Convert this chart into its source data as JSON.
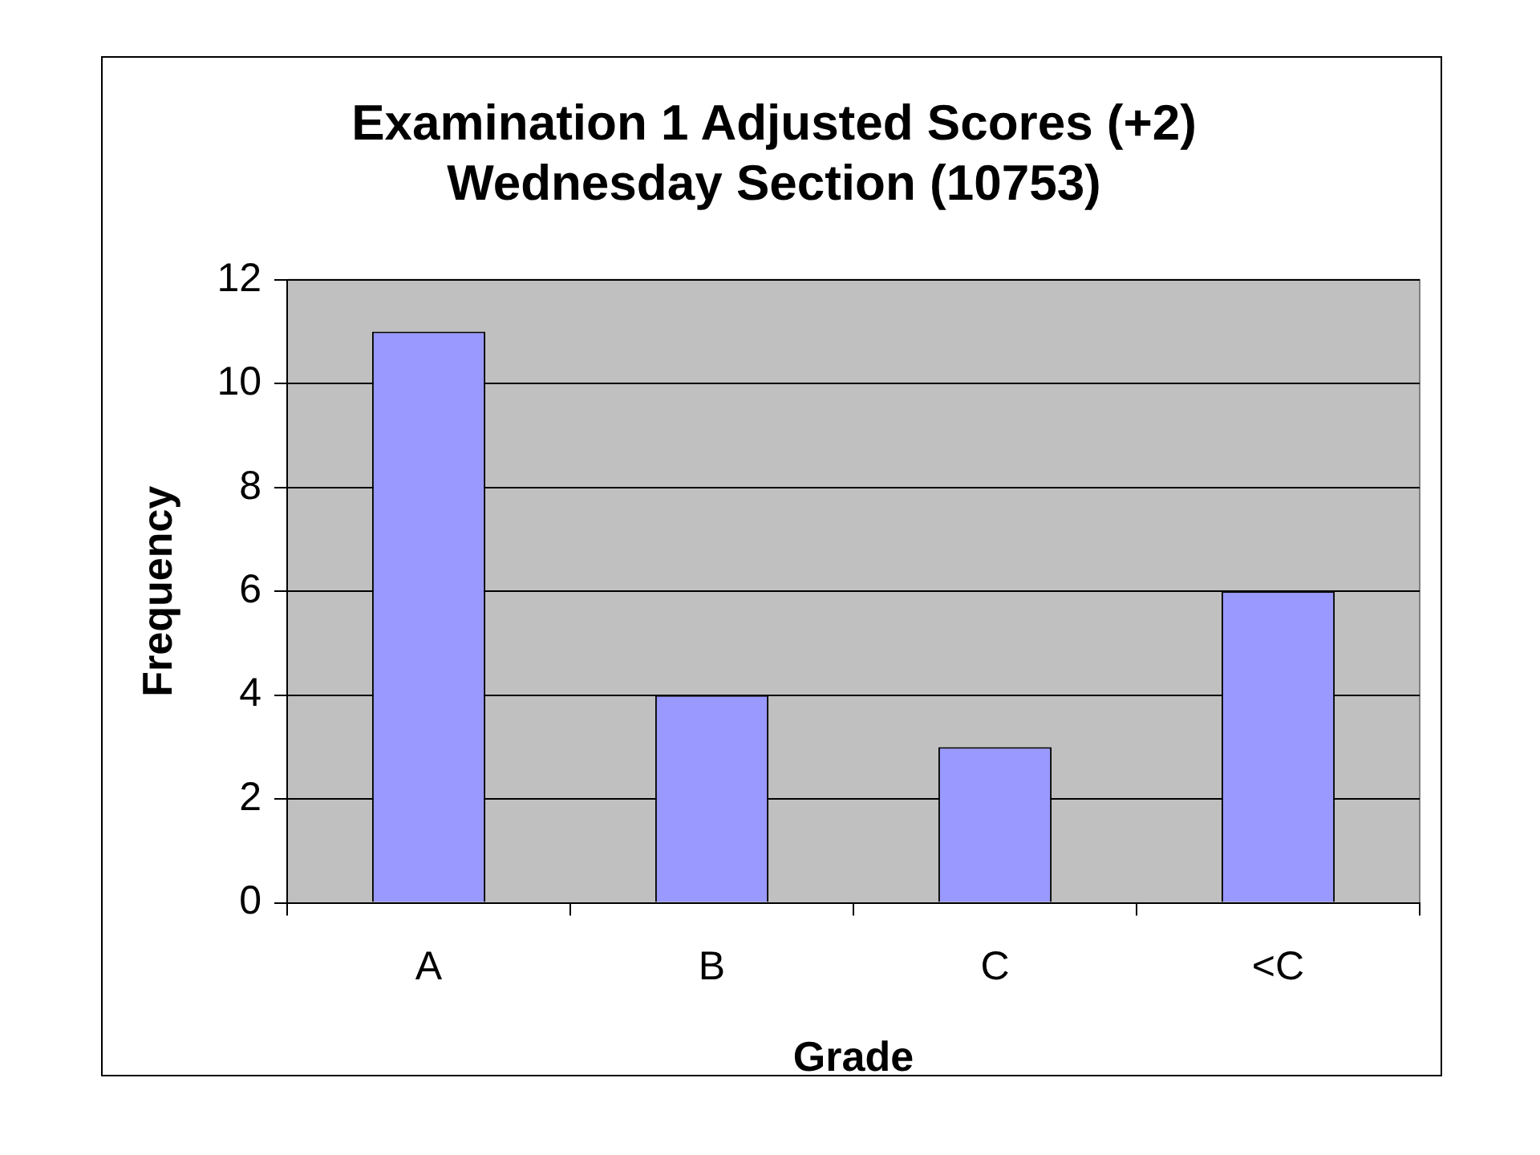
{
  "chart_data": {
    "type": "bar",
    "title": "Examination 1 Adjusted Scores (+2)\nWednesday Section (10753)",
    "xlabel": "Grade",
    "ylabel": "Frequency",
    "categories": [
      "A",
      "B",
      "C",
      "<C"
    ],
    "values": [
      11,
      4,
      3,
      6
    ],
    "color": "#9999ff",
    "ylim": [
      0,
      12
    ],
    "yticks": [
      0,
      2,
      4,
      6,
      8,
      10,
      12
    ],
    "grid": "y",
    "legend": false
  }
}
